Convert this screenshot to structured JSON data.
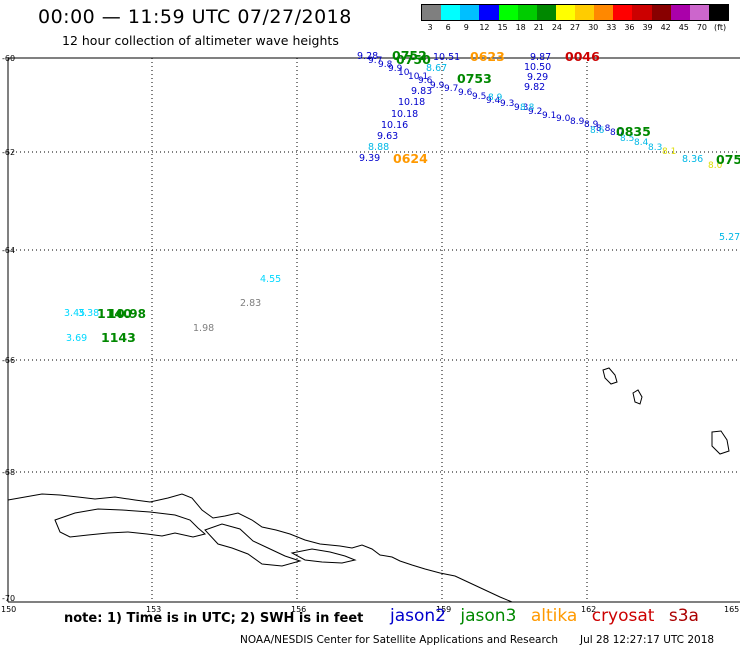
{
  "header": {
    "title": "00:00 — 11:59 UTC 07/27/2018",
    "subtitle": "12 hour collection of altimeter wave heights"
  },
  "legend": {
    "labels": [
      "3",
      "6",
      "9",
      "12",
      "15",
      "18",
      "21",
      "24",
      "27",
      "30",
      "33",
      "36",
      "39",
      "42",
      "45",
      "70",
      "(ft)"
    ],
    "colors": [
      "#7f7f7f",
      "#00ffff",
      "#00bfff",
      "#0000ff",
      "#00ff00",
      "#00cc00",
      "#008800",
      "#ffff00",
      "#ffcc00",
      "#ff8800",
      "#ff0000",
      "#cc0000",
      "#880000",
      "#aa00aa",
      "#cc66cc",
      "#000000"
    ]
  },
  "axes": {
    "lat_labels": [
      "-60",
      "-62",
      "-64",
      "-66",
      "-68",
      "-70"
    ],
    "lon_labels": [
      "150",
      "153",
      "156",
      "159",
      "162",
      "165"
    ]
  },
  "satellites": {
    "jason2": {
      "name": "jason2",
      "color": "#0000cc"
    },
    "jason3": {
      "name": "jason3",
      "color": "#008800"
    },
    "altika": {
      "name": "altika",
      "color": "#ff9900"
    },
    "cryosat": {
      "name": "cryosat",
      "color": "#cc0000"
    },
    "s3a": {
      "name": "s3a",
      "color": "#aa0000"
    }
  },
  "time_labels": {
    "jason3_0752": "0752",
    "jason3_0753": "0753",
    "jason3_0835": "0835",
    "jason3_0750": "0750",
    "altika_0623": "0623",
    "altika_0624": "0624",
    "cryosat_0046": "0046",
    "jason3_1140": "1140",
    "jason3_1143": "1143"
  },
  "wave_values": {
    "v_928": "9.28",
    "v_1051": "10.51",
    "v_987": "9.87",
    "v_867": "8.67",
    "v_1050": "10.50",
    "v_929": "9.29",
    "v_982": "9.82",
    "v_983": "9.83",
    "v_1018a": "10.18",
    "v_1018b": "10.18",
    "v_1016": "10.16",
    "v_963": "9.63",
    "v_888": "8.88",
    "v_939": "9.39",
    "v_836": "8.36",
    "v_527": "5.27",
    "v_455": "4.55",
    "v_283": "2.83",
    "v_198": "1.98",
    "v_369": "3.69",
    "v_345": "3.45",
    "v_338": "3.38",
    "v_1090": "10.90",
    "v_1098": "10.98"
  },
  "footer": {
    "note": "note: 1) Time is in UTC; 2) SWH is in feet",
    "credit": "NOAA/NESDIS Center for Satellite Applications and Research",
    "timestamp": "Jul 28 12:27:17 UTC 2018"
  }
}
